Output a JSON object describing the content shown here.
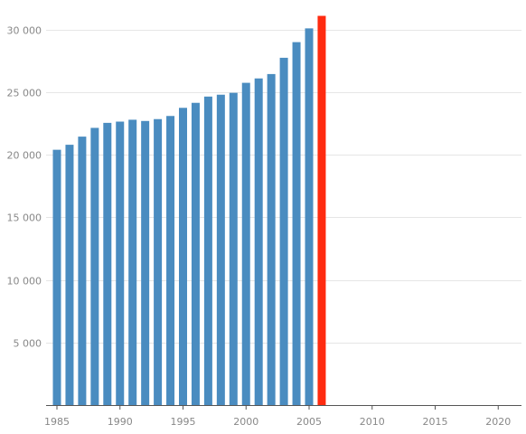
{
  "chart_data": {
    "type": "bar",
    "x_range": [
      1985,
      2021
    ],
    "ylim": [
      0,
      31500
    ],
    "x_ticks": [
      "1985",
      "1990",
      "1995",
      "2000",
      "2005",
      "2010",
      "2015",
      "2020"
    ],
    "y_ticks": [
      "5 000",
      "10 000",
      "15 000",
      "20 000",
      "25 000",
      "30 000"
    ],
    "y_tick_values": [
      5000,
      10000,
      15000,
      20000,
      25000,
      30000
    ],
    "bar_color": "#4a8cc0",
    "highlight_color": "#ff2b10",
    "highlight_x": 2006,
    "grid": true,
    "categories": [
      1985,
      1986,
      1987,
      1988,
      1989,
      1990,
      1991,
      1992,
      1993,
      1994,
      1995,
      1996,
      1997,
      1998,
      1999,
      2000,
      2001,
      2002,
      2003,
      2004,
      2005,
      2006
    ],
    "values": [
      20400,
      20800,
      21450,
      22150,
      22550,
      22650,
      22800,
      22700,
      22850,
      23100,
      23750,
      24150,
      24650,
      24800,
      24950,
      25750,
      26100,
      26450,
      27750,
      29000,
      30100,
      31100
    ]
  }
}
